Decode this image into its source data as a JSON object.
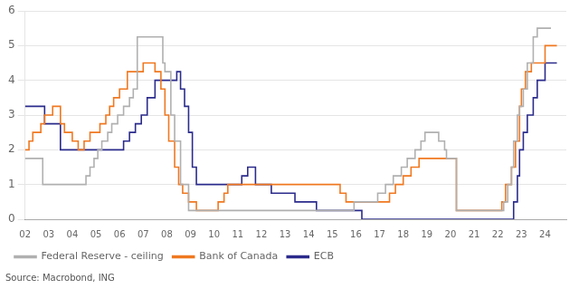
{
  "chart_data": {
    "type": "line",
    "line_style": "step",
    "annotations": [
      "Source: Macrobond, ING"
    ],
    "series": [
      {
        "name": "Federal Reserve - ceiling",
        "color": "#b0b0b0",
        "x": [
          2002.0,
          2002.75,
          2003.67,
          2004.42,
          2004.58,
          2004.75,
          2004.92,
          2005.08,
          2005.25,
          2005.5,
          2005.67,
          2005.92,
          2006.17,
          2006.42,
          2006.58,
          2006.75,
          2007.67,
          2007.83,
          2007.92,
          2008.17,
          2008.33,
          2008.58,
          2008.92,
          2009.0,
          2015.92,
          2016.92,
          2017.25,
          2017.58,
          2017.92,
          2018.17,
          2018.5,
          2018.75,
          2018.92,
          2019.5,
          2019.75,
          2019.83,
          2020.25,
          2022.25,
          2022.42,
          2022.58,
          2022.67,
          2022.83,
          2022.92,
          2023.08,
          2023.25,
          2023.5,
          2023.67,
          2024.25
        ],
        "values": [
          1.75,
          1.0,
          1.0,
          1.0,
          1.25,
          1.5,
          1.75,
          2.0,
          2.25,
          2.5,
          2.75,
          3.0,
          3.25,
          3.5,
          3.75,
          5.25,
          5.25,
          4.5,
          4.25,
          3.0,
          2.25,
          1.0,
          0.25,
          0.25,
          0.5,
          0.75,
          1.0,
          1.25,
          1.5,
          1.75,
          2.0,
          2.25,
          2.5,
          2.25,
          2.0,
          1.75,
          0.25,
          0.5,
          1.0,
          1.5,
          2.25,
          3.0,
          3.25,
          3.75,
          4.5,
          5.25,
          5.5,
          5.5
        ]
      },
      {
        "name": "Bank of Canada",
        "color": "#f07820",
        "x": [
          2002.0,
          2002.17,
          2002.33,
          2002.67,
          2002.83,
          2003.17,
          2003.5,
          2003.67,
          2004.0,
          2004.25,
          2004.5,
          2004.75,
          2005.17,
          2005.42,
          2005.58,
          2005.75,
          2006.0,
          2006.33,
          2007.0,
          2007.5,
          2007.75,
          2007.92,
          2008.08,
          2008.33,
          2008.5,
          2008.67,
          2008.92,
          2009.25,
          2010.17,
          2010.42,
          2010.58,
          2011.0,
          2015.33,
          2015.58,
          2017.42,
          2017.67,
          2018.0,
          2018.33,
          2018.67,
          2019.5,
          2020.25,
          2022.17,
          2022.33,
          2022.58,
          2022.75,
          2022.92,
          2023.0,
          2023.17,
          2023.42,
          2024.0,
          2024.5
        ],
        "values": [
          2.0,
          2.25,
          2.5,
          2.75,
          3.0,
          3.25,
          2.75,
          2.5,
          2.25,
          2.0,
          2.25,
          2.5,
          2.75,
          3.0,
          3.25,
          3.5,
          3.75,
          4.25,
          4.5,
          4.25,
          3.75,
          3.0,
          2.25,
          1.5,
          1.0,
          0.75,
          0.5,
          0.25,
          0.5,
          0.75,
          1.0,
          1.0,
          0.75,
          0.5,
          0.75,
          1.0,
          1.25,
          1.5,
          1.75,
          1.75,
          0.25,
          0.5,
          1.0,
          1.5,
          2.25,
          3.25,
          3.75,
          4.25,
          4.5,
          5.0,
          5.0
        ]
      },
      {
        "name": "ECB",
        "color": "#2b2b8c",
        "x": [
          2002.0,
          2002.83,
          2003.5,
          2005.92,
          2006.17,
          2006.42,
          2006.67,
          2006.92,
          2007.17,
          2007.5,
          2008.42,
          2008.58,
          2008.75,
          2008.92,
          2009.08,
          2009.25,
          2011.17,
          2011.42,
          2011.75,
          2012.42,
          2013.42,
          2014.33,
          2016.25,
          2019.75,
          2022.67,
          2022.83,
          2022.92,
          2023.08,
          2023.25,
          2023.5,
          2023.67,
          2024.0,
          2024.5
        ],
        "values": [
          3.25,
          2.75,
          2.0,
          2.0,
          2.25,
          2.5,
          2.75,
          3.0,
          3.5,
          4.0,
          4.25,
          3.75,
          3.25,
          2.5,
          1.5,
          1.0,
          1.25,
          1.5,
          1.0,
          0.75,
          0.5,
          0.25,
          0.0,
          0.0,
          0.5,
          1.25,
          2.0,
          2.5,
          3.0,
          3.5,
          4.0,
          4.5,
          4.5
        ]
      }
    ],
    "xlim": [
      2002,
      2024.9
    ],
    "xticks": [
      {
        "value": 2002,
        "label": "02"
      },
      {
        "value": 2003,
        "label": "03"
      },
      {
        "value": 2004,
        "label": "04"
      },
      {
        "value": 2005,
        "label": "05"
      },
      {
        "value": 2006,
        "label": "06"
      },
      {
        "value": 2007,
        "label": "07"
      },
      {
        "value": 2008,
        "label": "08"
      },
      {
        "value": 2009,
        "label": "09"
      },
      {
        "value": 2010,
        "label": "10"
      },
      {
        "value": 2011,
        "label": "11"
      },
      {
        "value": 2012,
        "label": "12"
      },
      {
        "value": 2013,
        "label": "13"
      },
      {
        "value": 2014,
        "label": "14"
      },
      {
        "value": 2015,
        "label": "15"
      },
      {
        "value": 2016,
        "label": "16"
      },
      {
        "value": 2017,
        "label": "17"
      },
      {
        "value": 2018,
        "label": "18"
      },
      {
        "value": 2019,
        "label": "19"
      },
      {
        "value": 2020,
        "label": "20"
      },
      {
        "value": 2021,
        "label": "21"
      },
      {
        "value": 2022,
        "label": "22"
      },
      {
        "value": 2023,
        "label": "23"
      },
      {
        "value": 2024,
        "label": "24"
      }
    ],
    "ylim": [
      0,
      6
    ],
    "yticks": [
      0,
      1,
      2,
      3,
      4,
      5,
      6
    ],
    "grid": "y",
    "legend": "bottom"
  }
}
